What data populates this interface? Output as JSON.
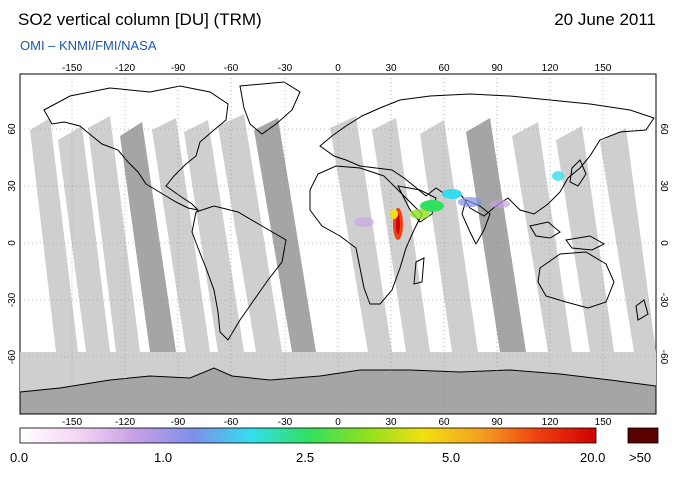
{
  "header": {
    "title": "SO2 vertical column [DU] (TRM)",
    "date": "20 June 2011",
    "credit": "OMI  –  KNMI/FMI/NASA"
  },
  "map": {
    "lon_ticks": [
      "-150",
      "-120",
      "-90",
      "-60",
      "-30",
      "0",
      "30",
      "60",
      "90",
      "120",
      "150"
    ],
    "lat_ticks": [
      "60",
      "30",
      "0",
      "-30",
      "-60"
    ],
    "colors": {
      "ocean": "#ffffff",
      "swath_light": "#cfcfcf",
      "swath_dark": "#9f9f9f",
      "antarctica": "#bdbdbd",
      "coast": "#000000",
      "grid": "#888888"
    }
  },
  "colorbar": {
    "labels": [
      "0.0",
      "1.0",
      "2.5",
      "5.0",
      "20.0"
    ],
    "max_label": ">50",
    "max_color": "#5a0000",
    "colors": [
      "#ffffff",
      "#f4d6f4",
      "#c6a0e6",
      "#7f8fe8",
      "#33ddee",
      "#30e060",
      "#8ee020",
      "#f0e010",
      "#f5a020",
      "#ee4010",
      "#d00000"
    ]
  }
}
